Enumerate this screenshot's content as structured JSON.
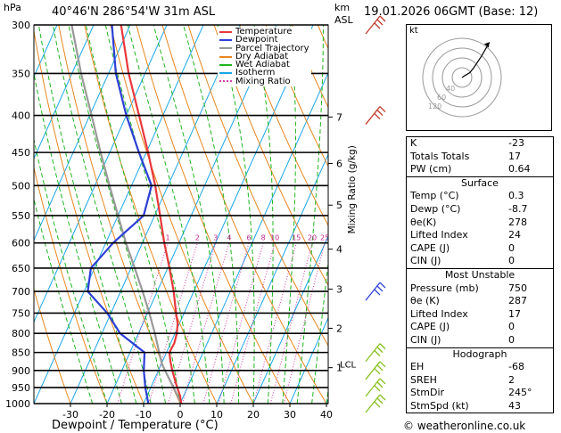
{
  "header": {
    "pressure_unit": "hPa",
    "location": "40°46'N  286°54'W  31m  ASL",
    "height_unit_top": "km",
    "height_unit_bottom": "ASL",
    "datetime": "19.01.2026  06GMT  (Base: 12)",
    "hodo_unit": "kt"
  },
  "footer": {
    "xlabel": "Dewpoint / Temperature (°C)",
    "credit": "© weatheronline.co.uk"
  },
  "legend": [
    {
      "label": "Temperature",
      "color": "#e8383a"
    },
    {
      "label": "Dewpoint",
      "color": "#2c3fd6"
    },
    {
      "label": "Parcel Trajectory",
      "color": "#999999"
    },
    {
      "label": "Dry Adiabat",
      "color": "#e8871e"
    },
    {
      "label": "Wet Adiabat",
      "color": "#1fb41f"
    },
    {
      "label": "Isotherm",
      "color": "#1aa7e8"
    },
    {
      "label": "Mixing Ratio",
      "color": "#d63aa8"
    }
  ],
  "mixing_ratio_axis_label": "Mixing Ratio (g/kg)",
  "chart_data": {
    "type": "skew-t log-p",
    "title": "40°46'N 286°54'W 31m ASL",
    "xlabel": "Dewpoint / Temperature (°C)",
    "ylabel": "hPa",
    "xlim": [
      -40,
      40
    ],
    "pressure_levels": [
      300,
      350,
      400,
      450,
      500,
      550,
      600,
      650,
      700,
      750,
      800,
      850,
      900,
      950,
      1000
    ],
    "x_ticks": [
      -30,
      -20,
      -10,
      0,
      10,
      20,
      30,
      40
    ],
    "mixing_ratio_labels": [
      "1",
      "2",
      "3",
      "4",
      "6",
      "8",
      "10",
      "15",
      "20",
      "25"
    ],
    "height_km_ticks": [
      {
        "km": "7",
        "p": 402
      },
      {
        "km": "6",
        "p": 466
      },
      {
        "km": "5",
        "p": 532
      },
      {
        "km": "4",
        "p": 612
      },
      {
        "km": "3",
        "p": 695
      },
      {
        "km": "2",
        "p": 787
      },
      {
        "km": "1",
        "p": 892
      }
    ],
    "lcl": {
      "label": "LCL",
      "p": 882
    },
    "temperature": [
      {
        "p": 1000,
        "t": 0.3
      },
      {
        "p": 975,
        "t": -1.0
      },
      {
        "p": 950,
        "t": -2.8
      },
      {
        "p": 925,
        "t": -4.5
      },
      {
        "p": 900,
        "t": -6.2
      },
      {
        "p": 875,
        "t": -7.8
      },
      {
        "p": 850,
        "t": -9.2
      },
      {
        "p": 825,
        "t": -9.0
      },
      {
        "p": 800,
        "t": -9.5
      },
      {
        "p": 775,
        "t": -10.5
      },
      {
        "p": 750,
        "t": -12.2
      },
      {
        "p": 700,
        "t": -15.5
      },
      {
        "p": 650,
        "t": -19.5
      },
      {
        "p": 600,
        "t": -24.0
      },
      {
        "p": 550,
        "t": -28.5
      },
      {
        "p": 500,
        "t": -33.5
      },
      {
        "p": 450,
        "t": -39.5
      },
      {
        "p": 400,
        "t": -46.5
      },
      {
        "p": 350,
        "t": -54.5
      },
      {
        "p": 300,
        "t": -62.5
      }
    ],
    "dewpoint": [
      {
        "p": 1000,
        "t": -8.7
      },
      {
        "p": 950,
        "t": -11.5
      },
      {
        "p": 900,
        "t": -14.0
      },
      {
        "p": 850,
        "t": -16.0
      },
      {
        "p": 800,
        "t": -25.0
      },
      {
        "p": 750,
        "t": -31.0
      },
      {
        "p": 700,
        "t": -39.0
      },
      {
        "p": 650,
        "t": -41.0
      },
      {
        "p": 600,
        "t": -38.0
      },
      {
        "p": 550,
        "t": -33.0
      },
      {
        "p": 500,
        "t": -34.5
      },
      {
        "p": 450,
        "t": -42.0
      },
      {
        "p": 400,
        "t": -50.0
      },
      {
        "p": 350,
        "t": -58.0
      },
      {
        "p": 300,
        "t": -65.0
      }
    ],
    "parcel": [
      {
        "p": 1000,
        "t": 0.3
      },
      {
        "p": 950,
        "t": -3.8
      },
      {
        "p": 900,
        "t": -8.2
      },
      {
        "p": 882,
        "t": -9.8
      },
      {
        "p": 850,
        "t": -12.0
      },
      {
        "p": 800,
        "t": -15.5
      },
      {
        "p": 750,
        "t": -19.5
      },
      {
        "p": 700,
        "t": -24.0
      },
      {
        "p": 650,
        "t": -29.0
      },
      {
        "p": 600,
        "t": -34.5
      },
      {
        "p": 550,
        "t": -40.0
      },
      {
        "p": 500,
        "t": -46.0
      },
      {
        "p": 450,
        "t": -52.5
      },
      {
        "p": 400,
        "t": -59.5
      },
      {
        "p": 350,
        "t": -67.5
      },
      {
        "p": 300,
        "t": -76.0
      }
    ],
    "hodograph": {
      "rings_kt": [
        10,
        20,
        30,
        40
      ],
      "ring_labels": [
        "40",
        "60",
        "120"
      ],
      "u_v_kt": [
        [
          0,
          0
        ],
        [
          3,
          2
        ],
        [
          8,
          5
        ],
        [
          12,
          10
        ],
        [
          20,
          22
        ],
        [
          28,
          36
        ]
      ]
    }
  },
  "indices": {
    "top": [
      {
        "label": "K",
        "value": "-23"
      },
      {
        "label": "Totals Totals",
        "value": "17"
      },
      {
        "label": "PW (cm)",
        "value": "0.64"
      }
    ],
    "surface": {
      "title": "Surface",
      "rows": [
        {
          "label": "Temp (°C)",
          "value": "0.3"
        },
        {
          "label": "Dewp (°C)",
          "value": "-8.7"
        },
        {
          "label": "θe(K)",
          "value": "278"
        },
        {
          "label": "Lifted Index",
          "value": "24"
        },
        {
          "label": "CAPE (J)",
          "value": "0"
        },
        {
          "label": "CIN (J)",
          "value": "0"
        }
      ]
    },
    "most_unstable": {
      "title": "Most Unstable",
      "rows": [
        {
          "label": "Pressure (mb)",
          "value": "750"
        },
        {
          "label": "θe (K)",
          "value": "287"
        },
        {
          "label": "Lifted Index",
          "value": "17"
        },
        {
          "label": "CAPE (J)",
          "value": "0"
        },
        {
          "label": "CIN (J)",
          "value": "0"
        }
      ]
    },
    "hodograph": {
      "title": "Hodograph",
      "rows": [
        {
          "label": "EH",
          "value": "-68"
        },
        {
          "label": "SREH",
          "value": "2"
        },
        {
          "label": "StmDir",
          "value": "245°"
        },
        {
          "label": "StmSpd (kt)",
          "value": "43"
        }
      ]
    }
  }
}
